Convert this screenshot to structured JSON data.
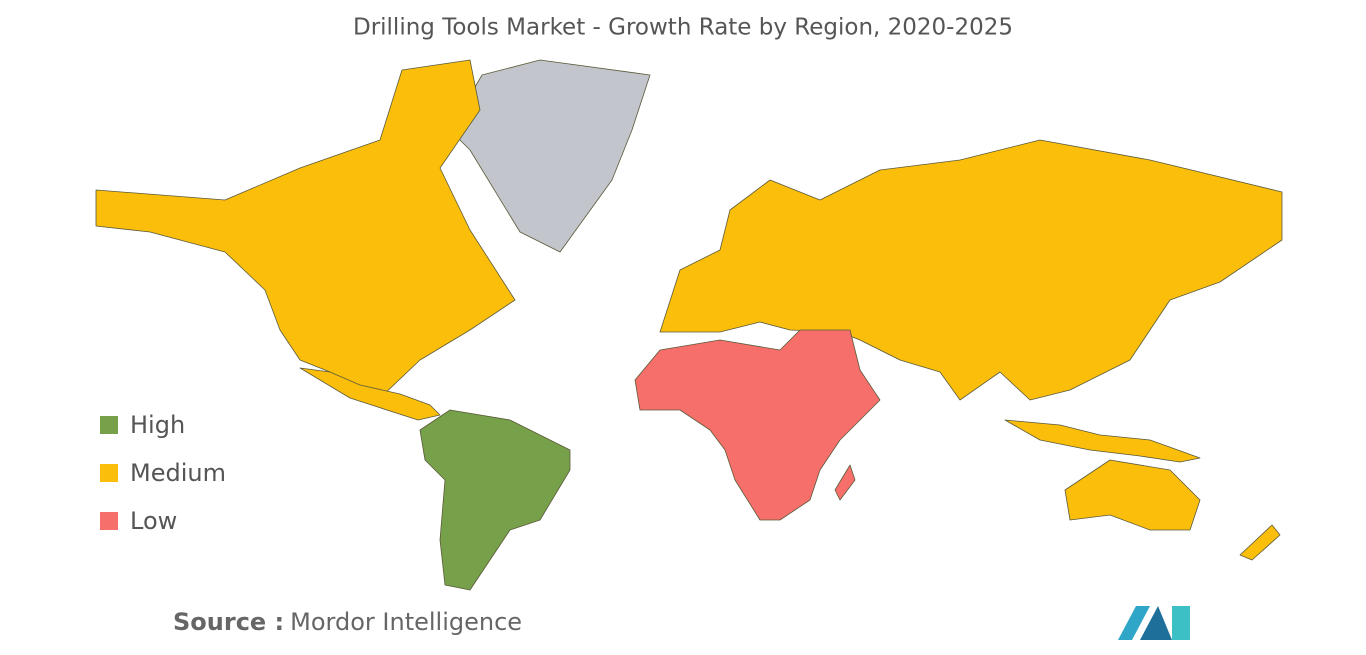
{
  "header": {
    "title": "Drilling Tools Market - Growth Rate by Region, 2020-2025"
  },
  "legend": {
    "items": [
      {
        "label": "High",
        "color": "#77a04a"
      },
      {
        "label": "Medium",
        "color": "#fbbe0b"
      },
      {
        "label": "Low",
        "color": "#f76f6b"
      }
    ]
  },
  "footer": {
    "source_label": "Source :",
    "source": "Mordor Intelligence"
  }
}
